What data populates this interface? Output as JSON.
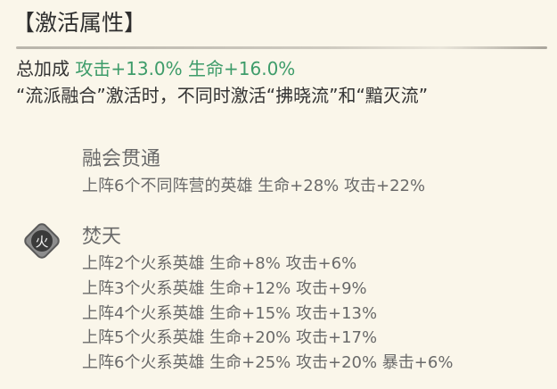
{
  "section_title": "【激活属性】",
  "total_bonus": {
    "label": "总加成",
    "attack": "攻击+13.0%",
    "hp": "生命+16.0%"
  },
  "note": "“流派融合”激活时，不同时激活“拂晓流”和“黯灭流”",
  "colors": {
    "bonus_green": "#3e9c6a",
    "background": "#faf6ea"
  },
  "traits": [
    {
      "name": "融会贯通",
      "icon": "none",
      "tiers": [
        "上阵6个不同阵营的英雄 生命+28% 攻击+22%"
      ]
    },
    {
      "name": "焚天",
      "icon": "fire-element-icon",
      "icon_glyph": "火",
      "tiers": [
        "上阵2个火系英雄 生命+8% 攻击+6%",
        "上阵3个火系英雄 生命+12% 攻击+9%",
        "上阵4个火系英雄 生命+15% 攻击+13%",
        "上阵5个火系英雄 生命+20% 攻击+17%",
        "上阵6个火系英雄 生命+25% 攻击+20% 暴击+6%"
      ]
    }
  ]
}
